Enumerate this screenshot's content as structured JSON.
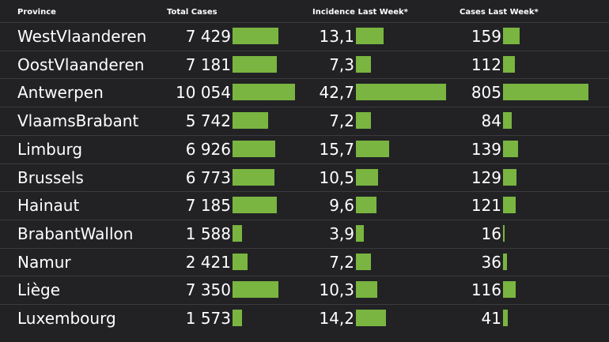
{
  "table": {
    "headers": {
      "province": "Province",
      "total_cases": "Total Cases",
      "incidence": "Incidence Last Week*",
      "cases_last_week": "Cases Last Week*"
    },
    "bar_color": "#79b540",
    "rows": [
      {
        "province": "WestVlaanderen",
        "total_cases": "7 429",
        "total_cases_value": 7429,
        "incidence": "13,1",
        "incidence_value": 13.1,
        "cases_last_week": "159",
        "cases_last_week_value": 159
      },
      {
        "province": "OostVlaanderen",
        "total_cases": "7 181",
        "total_cases_value": 7181,
        "incidence": "7,3",
        "incidence_value": 7.3,
        "cases_last_week": "112",
        "cases_last_week_value": 112
      },
      {
        "province": "Antwerpen",
        "total_cases": "10 054",
        "total_cases_value": 10054,
        "incidence": "42,7",
        "incidence_value": 42.7,
        "cases_last_week": "805",
        "cases_last_week_value": 805
      },
      {
        "province": "VlaamsBrabant",
        "total_cases": "5 742",
        "total_cases_value": 5742,
        "incidence": "7,2",
        "incidence_value": 7.2,
        "cases_last_week": "84",
        "cases_last_week_value": 84
      },
      {
        "province": "Limburg",
        "total_cases": "6 926",
        "total_cases_value": 6926,
        "incidence": "15,7",
        "incidence_value": 15.7,
        "cases_last_week": "139",
        "cases_last_week_value": 139
      },
      {
        "province": "Brussels",
        "total_cases": "6 773",
        "total_cases_value": 6773,
        "incidence": "10,5",
        "incidence_value": 10.5,
        "cases_last_week": "129",
        "cases_last_week_value": 129
      },
      {
        "province": "Hainaut",
        "total_cases": "7 185",
        "total_cases_value": 7185,
        "incidence": "9,6",
        "incidence_value": 9.6,
        "cases_last_week": "121",
        "cases_last_week_value": 121
      },
      {
        "province": "BrabantWallon",
        "total_cases": "1 588",
        "total_cases_value": 1588,
        "incidence": "3,9",
        "incidence_value": 3.9,
        "cases_last_week": "16",
        "cases_last_week_value": 16
      },
      {
        "province": "Namur",
        "total_cases": "2 421",
        "total_cases_value": 2421,
        "incidence": "7,2",
        "incidence_value": 7.2,
        "cases_last_week": "36",
        "cases_last_week_value": 36
      },
      {
        "province": "Liège",
        "total_cases": "7 350",
        "total_cases_value": 7350,
        "incidence": "10,3",
        "incidence_value": 10.3,
        "cases_last_week": "116",
        "cases_last_week_value": 116
      },
      {
        "province": "Luxembourg",
        "total_cases": "1 573",
        "total_cases_value": 1573,
        "incidence": "14,2",
        "incidence_value": 14.2,
        "cases_last_week": "41",
        "cases_last_week_value": 41
      }
    ]
  }
}
